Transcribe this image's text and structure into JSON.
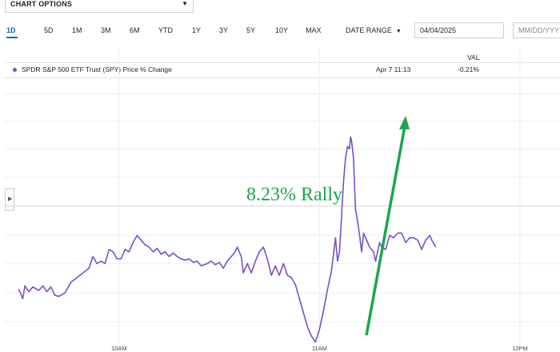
{
  "toolbar": {
    "chart_options_label": "CHART OPTIONS",
    "ranges": [
      "1D",
      "5D",
      "1M",
      "3M",
      "6M",
      "YTD",
      "1Y",
      "3Y",
      "5Y",
      "10Y",
      "MAX"
    ],
    "active_range": "1D",
    "date_range_label": "DATE RANGE",
    "date_start_value": "04/04/2025",
    "date_end_placeholder": "MM/DD/YYYY"
  },
  "legend": {
    "series_label": "SPDR S&P 500 ETF Trust (SPY) Price % Change",
    "timestamp": "Apr 7 11:13",
    "value_header": "VAL",
    "value": "-0.21%"
  },
  "colors": {
    "series": "#7a4fc7",
    "annotation": "#1aa64f",
    "accent": "#1565c0"
  },
  "chart_data": {
    "type": "line",
    "title": "",
    "xlabel": "",
    "ylabel": "",
    "x_ticks": [
      "10AM",
      "11AM",
      "12PM"
    ],
    "xlim": [
      9.43,
      12.2
    ],
    "ylim": [
      -4.9,
      6.0
    ],
    "series": [
      {
        "name": "SPDR S&P 500 ETF Trust (SPY) Price % Change",
        "points": [
          [
            9.5,
            -2.6
          ],
          [
            9.52,
            -3.0
          ],
          [
            9.53,
            -2.45
          ],
          [
            9.55,
            -2.7
          ],
          [
            9.57,
            -2.5
          ],
          [
            9.6,
            -2.65
          ],
          [
            9.62,
            -2.45
          ],
          [
            9.64,
            -2.7
          ],
          [
            9.66,
            -2.5
          ],
          [
            9.68,
            -2.85
          ],
          [
            9.7,
            -2.9
          ],
          [
            9.73,
            -2.75
          ],
          [
            9.76,
            -2.3
          ],
          [
            9.79,
            -2.1
          ],
          [
            9.82,
            -1.9
          ],
          [
            9.85,
            -1.7
          ],
          [
            9.87,
            -1.2
          ],
          [
            9.89,
            -1.5
          ],
          [
            9.91,
            -1.4
          ],
          [
            9.93,
            -1.5
          ],
          [
            9.95,
            -0.9
          ],
          [
            9.97,
            -1.0
          ],
          [
            9.99,
            -1.3
          ],
          [
            10.01,
            -1.3
          ],
          [
            10.03,
            -0.9
          ],
          [
            10.05,
            -1.0
          ],
          [
            10.07,
            -0.6
          ],
          [
            10.09,
            -0.3
          ],
          [
            10.11,
            -0.5
          ],
          [
            10.13,
            -0.7
          ],
          [
            10.15,
            -0.8
          ],
          [
            10.17,
            -1.0
          ],
          [
            10.19,
            -0.85
          ],
          [
            10.21,
            -1.1
          ],
          [
            10.23,
            -1.0
          ],
          [
            10.25,
            -1.2
          ],
          [
            10.27,
            -1.05
          ],
          [
            10.29,
            -1.2
          ],
          [
            10.31,
            -1.3
          ],
          [
            10.33,
            -1.35
          ],
          [
            10.35,
            -1.3
          ],
          [
            10.37,
            -1.45
          ],
          [
            10.39,
            -1.4
          ],
          [
            10.41,
            -1.6
          ],
          [
            10.44,
            -1.5
          ],
          [
            10.46,
            -1.4
          ],
          [
            10.48,
            -1.55
          ],
          [
            10.5,
            -1.45
          ],
          [
            10.52,
            -1.7
          ],
          [
            10.54,
            -1.4
          ],
          [
            10.56,
            -1.2
          ],
          [
            10.58,
            -1.0
          ],
          [
            10.59,
            -0.8
          ],
          [
            10.61,
            -1.2
          ],
          [
            10.62,
            -1.9
          ],
          [
            10.64,
            -1.5
          ],
          [
            10.66,
            -1.9
          ],
          [
            10.68,
            -1.4
          ],
          [
            10.7,
            -1.0
          ],
          [
            10.72,
            -0.8
          ],
          [
            10.74,
            -1.3
          ],
          [
            10.76,
            -2.0
          ],
          [
            10.78,
            -1.6
          ],
          [
            10.8,
            -2.0
          ],
          [
            10.82,
            -1.5
          ],
          [
            10.84,
            -2.0
          ],
          [
            10.86,
            -2.1
          ],
          [
            10.88,
            -2.4
          ],
          [
            10.9,
            -3.0
          ],
          [
            10.92,
            -3.6
          ],
          [
            10.94,
            -4.2
          ],
          [
            10.96,
            -4.6
          ],
          [
            10.98,
            -4.85
          ],
          [
            11.0,
            -4.3
          ],
          [
            11.02,
            -3.5
          ],
          [
            11.04,
            -2.6
          ],
          [
            11.06,
            -1.8
          ],
          [
            11.08,
            -0.4
          ],
          [
            11.09,
            -1.4
          ],
          [
            11.1,
            -1.0
          ],
          [
            11.11,
            0.5
          ],
          [
            11.12,
            2.0
          ],
          [
            11.13,
            3.0
          ],
          [
            11.14,
            3.5
          ],
          [
            11.15,
            3.4
          ],
          [
            11.155,
            3.9
          ],
          [
            11.16,
            3.75
          ],
          [
            11.17,
            3.0
          ],
          [
            11.18,
            0.8
          ],
          [
            11.19,
            0.3
          ],
          [
            11.2,
            -0.3
          ],
          [
            11.21,
            -1.0
          ],
          [
            11.22,
            -0.2
          ],
          [
            11.23,
            -0.4
          ],
          [
            11.24,
            -0.6
          ],
          [
            11.25,
            -0.8
          ],
          [
            11.27,
            -1.0
          ],
          [
            11.28,
            -1.4
          ],
          [
            11.3,
            -0.6
          ],
          [
            11.31,
            -0.8
          ],
          [
            11.33,
            -0.9
          ],
          [
            11.35,
            -0.3
          ],
          [
            11.37,
            -0.4
          ],
          [
            11.39,
            -0.2
          ],
          [
            11.41,
            -0.2
          ],
          [
            11.43,
            -0.6
          ],
          [
            11.45,
            -0.4
          ],
          [
            11.47,
            -0.4
          ],
          [
            11.49,
            -0.5
          ],
          [
            11.51,
            -0.9
          ],
          [
            11.53,
            -0.5
          ],
          [
            11.55,
            -0.3
          ],
          [
            11.56,
            -0.5
          ],
          [
            11.58,
            -0.8
          ]
        ]
      }
    ]
  }
}
